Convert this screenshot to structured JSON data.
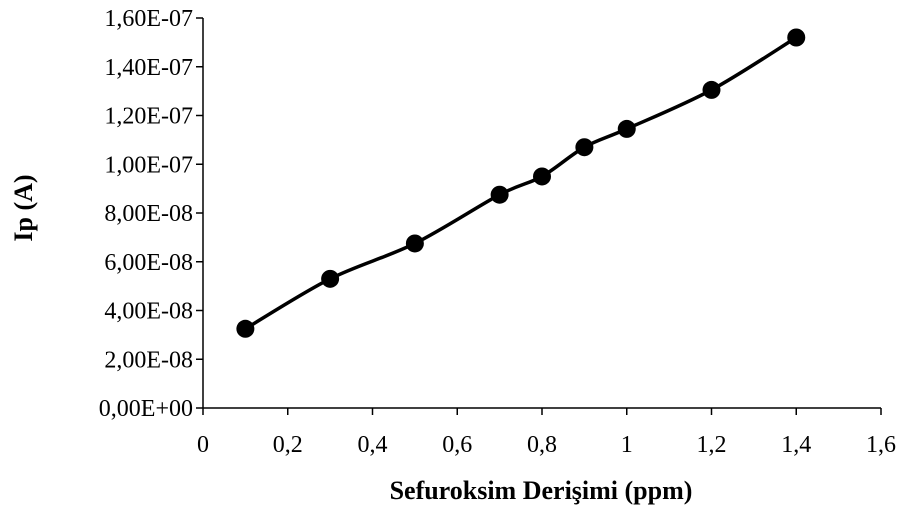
{
  "chart_data": {
    "type": "line",
    "title": "",
    "xlabel": "Sefuroksim Derişimi (ppm)",
    "ylabel": "Ip (A)",
    "xlim": [
      0,
      1.6
    ],
    "ylim": [
      0,
      1.6e-07
    ],
    "grid": false,
    "legend": "none",
    "x_ticks": [
      {
        "value": 0,
        "label": "0"
      },
      {
        "value": 0.2,
        "label": "0,2"
      },
      {
        "value": 0.4,
        "label": "0,4"
      },
      {
        "value": 0.6,
        "label": "0,6"
      },
      {
        "value": 0.8,
        "label": "0,8"
      },
      {
        "value": 1.0,
        "label": "1"
      },
      {
        "value": 1.2,
        "label": "1,2"
      },
      {
        "value": 1.4,
        "label": "1,4"
      },
      {
        "value": 1.6,
        "label": "1,6"
      }
    ],
    "y_ticks": [
      {
        "value": 0,
        "label": "0,00E+00"
      },
      {
        "value": 2e-08,
        "label": "2,00E-08"
      },
      {
        "value": 4e-08,
        "label": "4,00E-08"
      },
      {
        "value": 6e-08,
        "label": "6,00E-08"
      },
      {
        "value": 8e-08,
        "label": "8,00E-08"
      },
      {
        "value": 1e-07,
        "label": "1,00E-07"
      },
      {
        "value": 1.2e-07,
        "label": "1,20E-07"
      },
      {
        "value": 1.4e-07,
        "label": "1,40E-07"
      },
      {
        "value": 1.6e-07,
        "label": "1,60E-07"
      }
    ],
    "series": [
      {
        "x": [
          0.1,
          0.3,
          0.5,
          0.7,
          0.8,
          0.9,
          1.0,
          1.2,
          1.4
        ],
        "y": [
          3.25e-08,
          5.3e-08,
          6.75e-08,
          8.75e-08,
          9.5e-08,
          1.07e-07,
          1.145e-07,
          1.305e-07,
          1.52e-07
        ],
        "color": "#000000",
        "marker": "circle"
      }
    ]
  }
}
